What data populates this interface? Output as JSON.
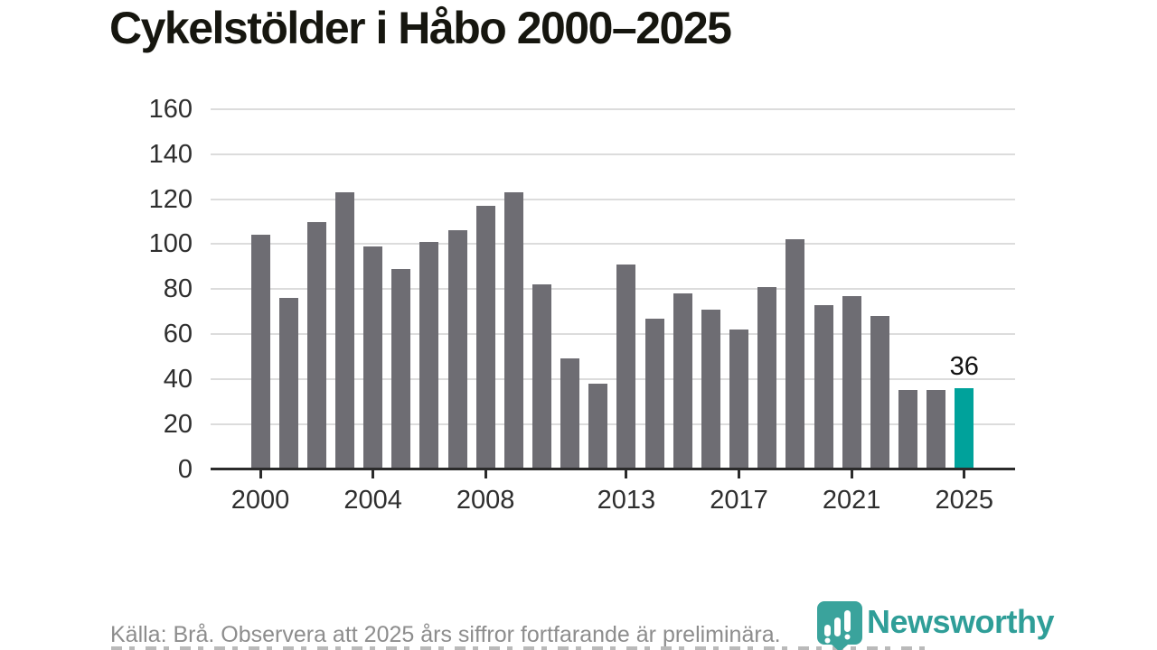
{
  "title": "Cykelstölder i Håbo 2000–2025",
  "footer": {
    "source_note": "Källa: Brå. Observera att 2025 års siffror fortfarande är preliminära."
  },
  "logo": {
    "name": "Newsworthy",
    "color": "#2f9e98"
  },
  "chart_data": {
    "type": "bar",
    "title": "Cykelstölder i Håbo 2000–2025",
    "xlabel": "",
    "ylabel": "",
    "x": [
      2000,
      2001,
      2002,
      2003,
      2004,
      2005,
      2006,
      2007,
      2008,
      2009,
      2010,
      2011,
      2012,
      2013,
      2014,
      2015,
      2016,
      2017,
      2018,
      2019,
      2020,
      2021,
      2022,
      2023,
      2024,
      2025
    ],
    "values": [
      104,
      76,
      110,
      123,
      99,
      89,
      101,
      106,
      117,
      123,
      82,
      49,
      38,
      91,
      67,
      78,
      71,
      62,
      81,
      102,
      73,
      77,
      68,
      35,
      35,
      36
    ],
    "highlight_x": 2025,
    "annotation": {
      "x": 2025,
      "label": "36"
    },
    "ylim": [
      0,
      160
    ],
    "yticks": [
      0,
      20,
      40,
      60,
      80,
      100,
      120,
      140,
      160
    ],
    "xticks": [
      2000,
      2004,
      2008,
      2013,
      2017,
      2021,
      2025
    ],
    "grid": true,
    "legend": "none",
    "colors": {
      "bar": "#6e6d73",
      "highlight": "#00a29b",
      "gridline": "#dcdcdc",
      "axis": "#2b2b2b",
      "tick_label": "#2e2e2e"
    }
  }
}
